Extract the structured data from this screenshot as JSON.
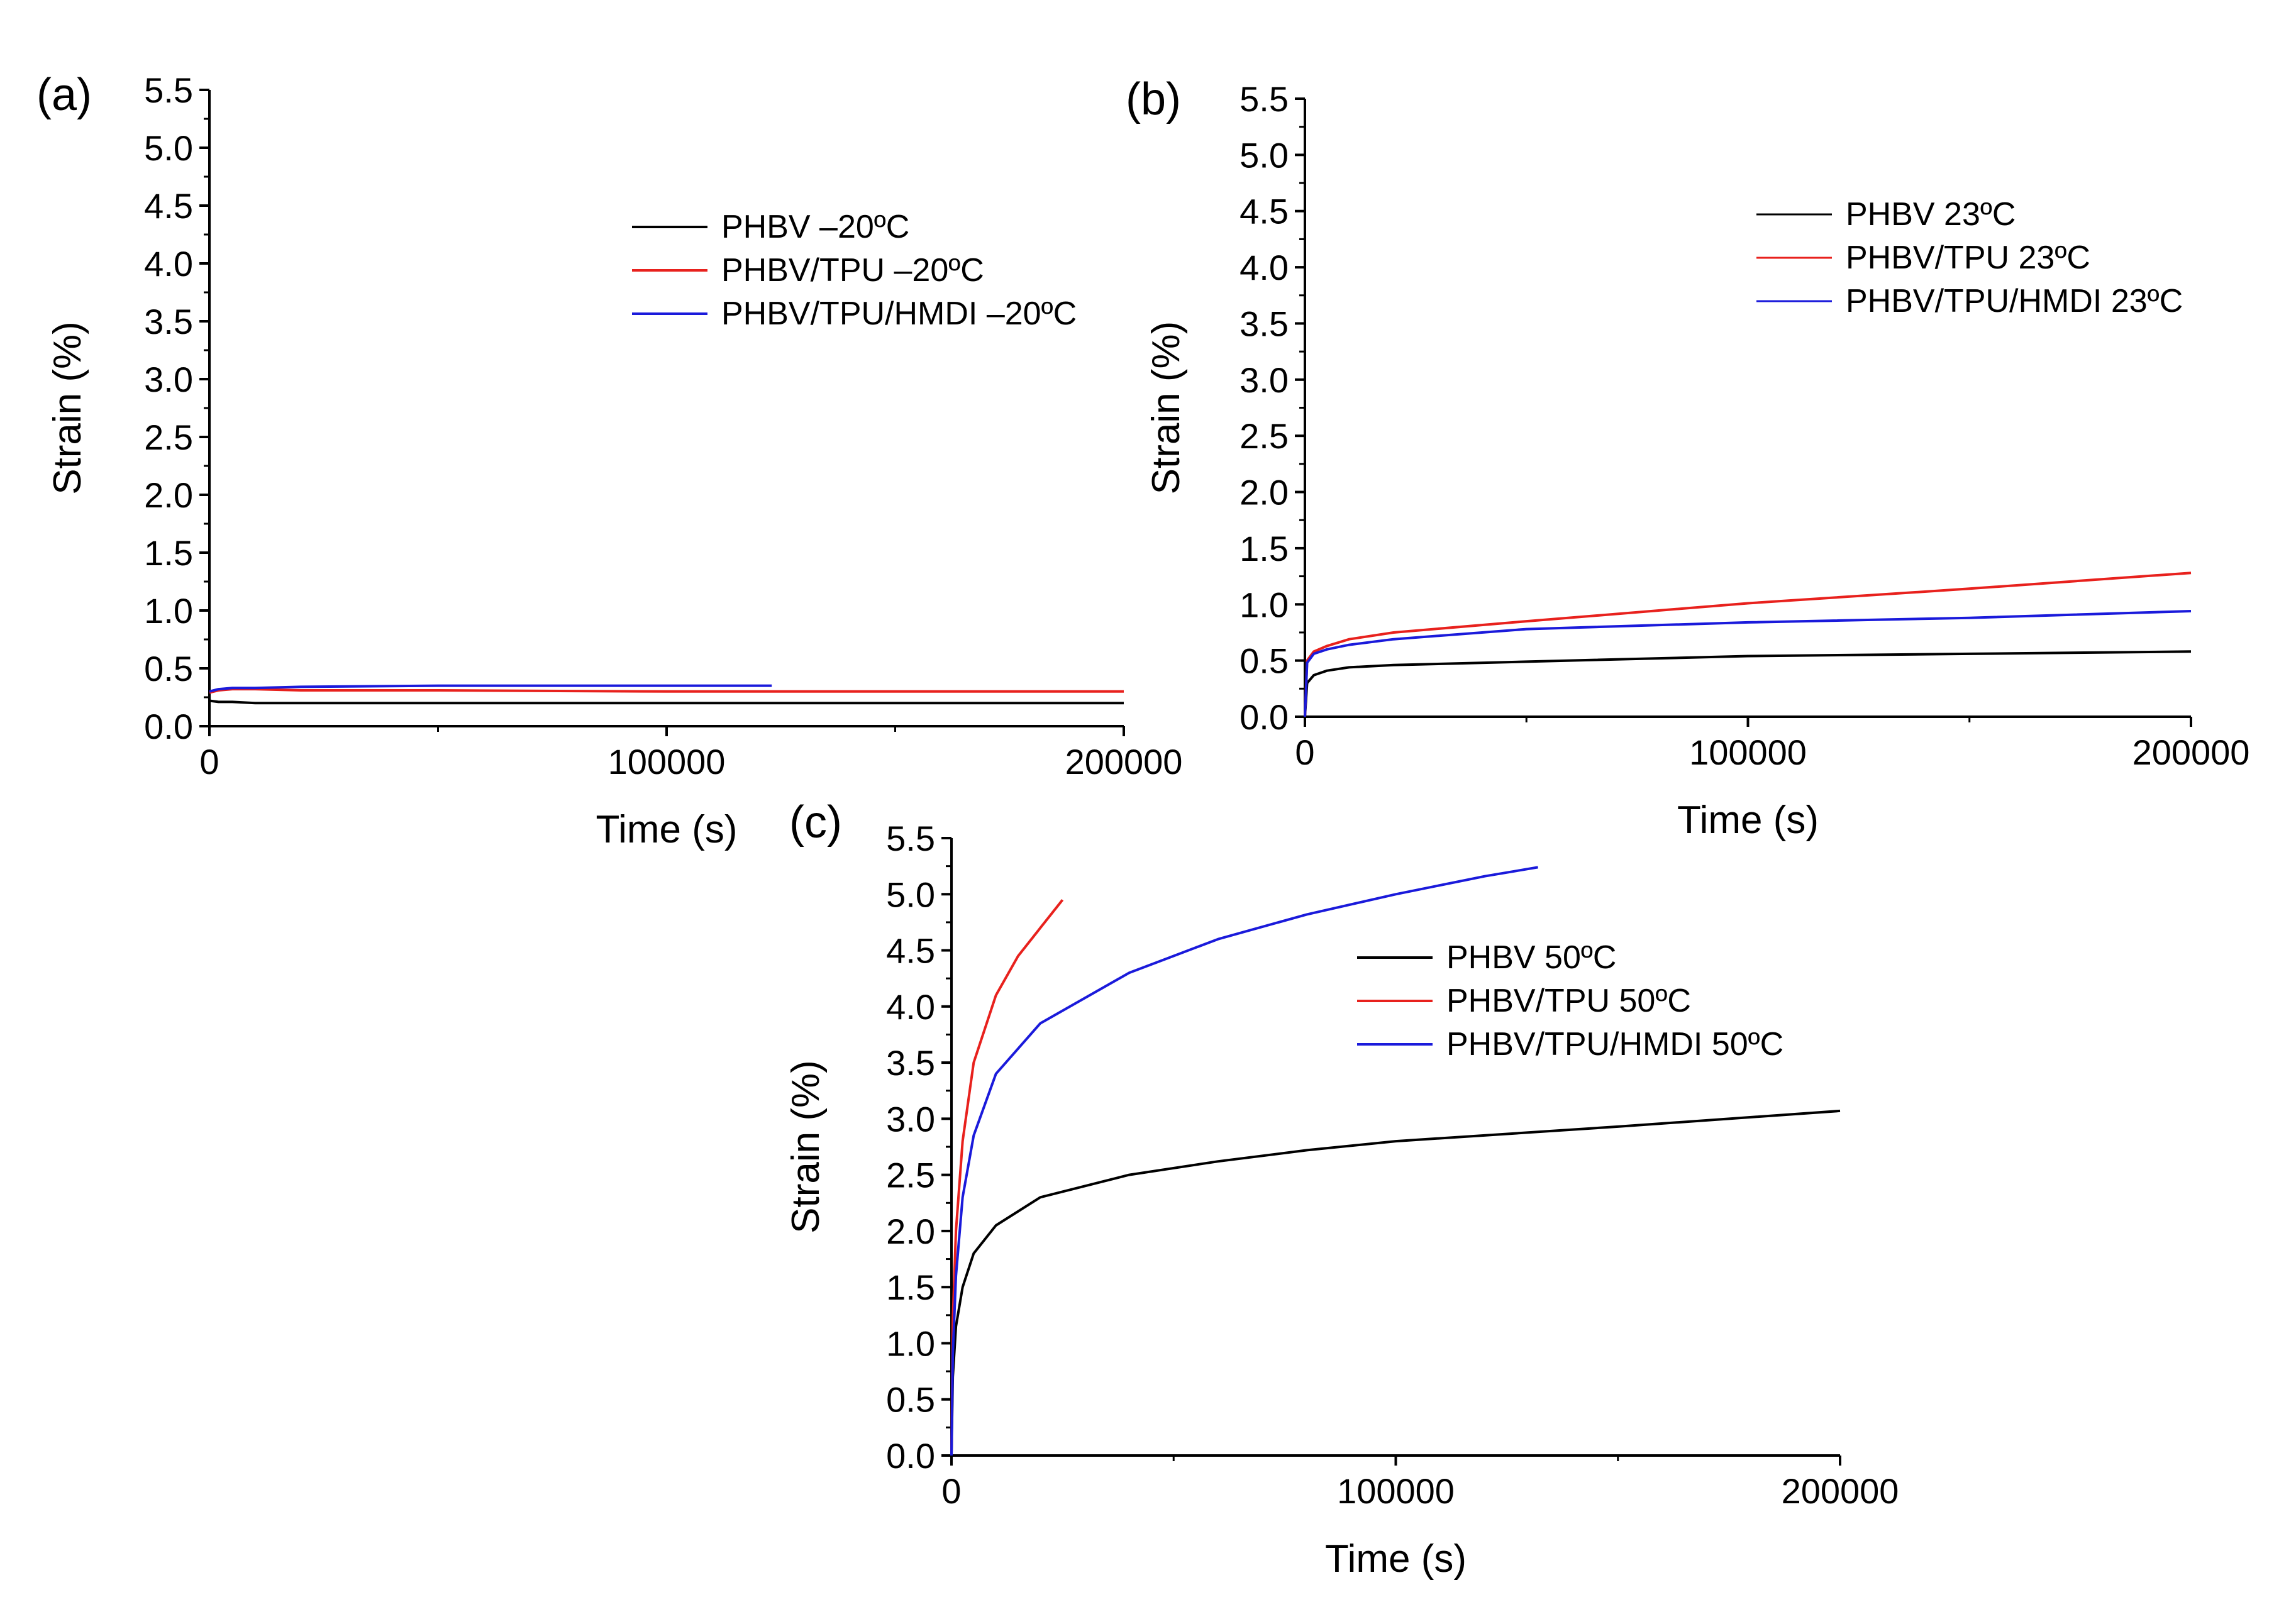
{
  "chart_data": [
    {
      "type": "line",
      "panel_label": "(a)",
      "xlabel": "Time (s)",
      "ylabel": "Strain (%)",
      "xlim": [
        0,
        200000
      ],
      "ylim": [
        0,
        5.5
      ],
      "x_ticks": [
        0,
        100000,
        200000
      ],
      "x_tick_labels": [
        "0",
        "100000",
        "200000"
      ],
      "y_ticks": [
        0,
        0.5,
        1,
        1.5,
        2,
        2.5,
        3,
        3.5,
        4,
        4.5,
        5,
        5.5
      ],
      "y_tick_labels": [
        "0.0",
        "0.5",
        "1.0",
        "1.5",
        "2.0",
        "2.5",
        "3.0",
        "3.5",
        "4.0",
        "4.5",
        "5.0",
        "5.5"
      ],
      "legend_position": "top-right",
      "series": [
        {
          "name": "PHBV –20ºC",
          "color": "#000000",
          "x": [
            0,
            2000,
            5000,
            10000,
            20000,
            50000,
            100000,
            150000,
            200000
          ],
          "y": [
            0.22,
            0.21,
            0.21,
            0.2,
            0.2,
            0.2,
            0.2,
            0.2,
            0.2
          ]
        },
        {
          "name": "PHBV/TPU –20ºC",
          "color": "#e8211d",
          "x": [
            0,
            2000,
            5000,
            10000,
            20000,
            50000,
            100000,
            150000,
            200000
          ],
          "y": [
            0.29,
            0.31,
            0.32,
            0.32,
            0.31,
            0.31,
            0.3,
            0.3,
            0.3
          ]
        },
        {
          "name": "PHBV/TPU/HMDI –20ºC",
          "color": "#1a1adb",
          "x": [
            0,
            2000,
            5000,
            10000,
            20000,
            50000,
            80000,
            100000,
            123000
          ],
          "y": [
            0.3,
            0.32,
            0.33,
            0.33,
            0.34,
            0.35,
            0.35,
            0.35,
            0.35
          ]
        }
      ]
    },
    {
      "type": "line",
      "panel_label": "(b)",
      "xlabel": "Time (s)",
      "ylabel": "Strain (%)",
      "xlim": [
        0,
        200000
      ],
      "ylim": [
        0,
        5.5
      ],
      "x_ticks": [
        0,
        100000,
        200000
      ],
      "x_tick_labels": [
        "0",
        "100000",
        "200000"
      ],
      "y_ticks": [
        0,
        0.5,
        1,
        1.5,
        2,
        2.5,
        3,
        3.5,
        4,
        4.5,
        5,
        5.5
      ],
      "y_tick_labels": [
        "0.0",
        "0.5",
        "1.0",
        "1.5",
        "2.0",
        "2.5",
        "3.0",
        "3.5",
        "4.0",
        "4.5",
        "5.0",
        "5.5"
      ],
      "legend_position": "top-right",
      "series": [
        {
          "name": "PHBV 23ºC",
          "color": "#000000",
          "x": [
            0,
            500,
            2000,
            5000,
            10000,
            20000,
            50000,
            100000,
            150000,
            200000
          ],
          "y": [
            0,
            0.3,
            0.37,
            0.41,
            0.44,
            0.46,
            0.49,
            0.54,
            0.56,
            0.58
          ]
        },
        {
          "name": "PHBV/TPU 23ºC",
          "color": "#e8211d",
          "x": [
            0,
            500,
            2000,
            5000,
            10000,
            20000,
            50000,
            100000,
            150000,
            200000
          ],
          "y": [
            0,
            0.5,
            0.58,
            0.63,
            0.69,
            0.75,
            0.85,
            1.01,
            1.14,
            1.28
          ]
        },
        {
          "name": "PHBV/TPU/HMDI 23ºC",
          "color": "#1a1adb",
          "x": [
            0,
            500,
            2000,
            5000,
            10000,
            20000,
            50000,
            100000,
            150000,
            200000
          ],
          "y": [
            0,
            0.48,
            0.56,
            0.6,
            0.64,
            0.69,
            0.78,
            0.84,
            0.88,
            0.94
          ]
        }
      ]
    },
    {
      "type": "line",
      "panel_label": "(c)",
      "xlabel": "Time (s)",
      "ylabel": "Strain (%)",
      "xlim": [
        0,
        200000
      ],
      "ylim": [
        0,
        5.5
      ],
      "x_ticks": [
        0,
        100000,
        200000
      ],
      "x_tick_labels": [
        "0",
        "100000",
        "200000"
      ],
      "y_ticks": [
        0,
        0.5,
        1,
        1.5,
        2,
        2.5,
        3,
        3.5,
        4,
        4.5,
        5,
        5.5
      ],
      "y_tick_labels": [
        "0.0",
        "0.5",
        "1.0",
        "1.5",
        "2.0",
        "2.5",
        "3.0",
        "3.5",
        "4.0",
        "4.5",
        "5.0",
        "5.5"
      ],
      "legend_position": "center-right",
      "series": [
        {
          "name": "PHBV 50ºC",
          "color": "#000000",
          "x": [
            0,
            300,
            1000,
            2500,
            5000,
            10000,
            20000,
            40000,
            60000,
            80000,
            100000,
            150000,
            200000
          ],
          "y": [
            0,
            0.7,
            1.15,
            1.5,
            1.8,
            2.05,
            2.3,
            2.5,
            2.62,
            2.72,
            2.8,
            2.93,
            3.07
          ]
        },
        {
          "name": "PHBV/TPU 50ºC",
          "color": "#e8211d",
          "x": [
            0,
            300,
            1000,
            2500,
            5000,
            10000,
            15000,
            20000,
            25000
          ],
          "y": [
            0,
            1.2,
            2.0,
            2.8,
            3.5,
            4.1,
            4.45,
            4.7,
            4.95
          ]
        },
        {
          "name": "PHBV/TPU/HMDI 50ºC",
          "color": "#1a1adb",
          "x": [
            0,
            300,
            1000,
            2500,
            5000,
            10000,
            20000,
            40000,
            60000,
            80000,
            100000,
            120000,
            132000
          ],
          "y": [
            0,
            0.9,
            1.6,
            2.3,
            2.85,
            3.4,
            3.85,
            4.3,
            4.6,
            4.82,
            5.0,
            5.16,
            5.24
          ]
        }
      ]
    }
  ]
}
